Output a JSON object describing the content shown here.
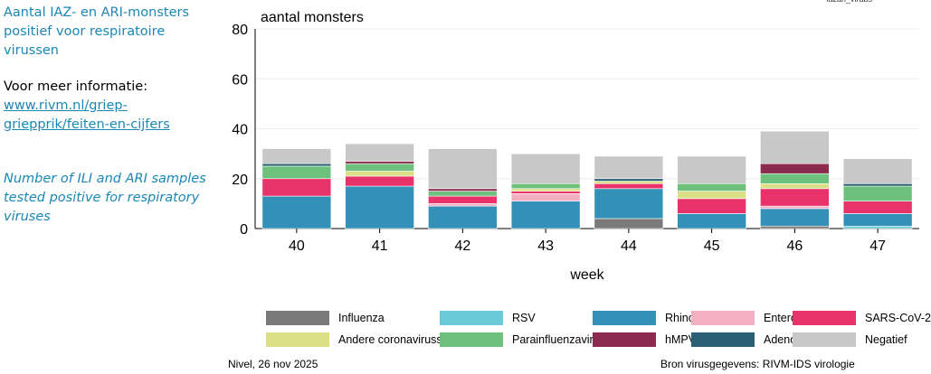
{
  "sidebar": {
    "title": "Aantal IAZ- en ARI-monsters positief voor respiratoire virussen",
    "more_info": "Voor meer informatie:",
    "link": "www.rivm.nl/griep-griepprik/feiten-en-cijfers",
    "english": "Number of ILI and ARI samples tested positive for respiratory viruses"
  },
  "corner_text": "lazari_virabs",
  "footer": {
    "left": "Nivel, 26 nov 2025",
    "right": "Bron virusgegevens: RIVM-IDS virologie"
  },
  "chart_data": {
    "type": "bar",
    "stacked": true,
    "ylabel": "aantal monsters",
    "xlabel": "week",
    "ylim": [
      0,
      80
    ],
    "yticks": [
      0,
      20,
      40,
      60,
      80
    ],
    "grid": true,
    "legend_position": "bottom",
    "categories": [
      "40",
      "41",
      "42",
      "43",
      "44",
      "45",
      "46",
      "47"
    ],
    "series": [
      {
        "name": "Influenza",
        "color": "#7a7a7a",
        "values": [
          0,
          0,
          0,
          0,
          4,
          0,
          1,
          0
        ]
      },
      {
        "name": "RSV",
        "color": "#6ccad6",
        "values": [
          0,
          0,
          0,
          0,
          0,
          0,
          0,
          1
        ]
      },
      {
        "name": "Rhino",
        "color": "#3390b7",
        "values": [
          13,
          17,
          9,
          11,
          12,
          6,
          7,
          5
        ]
      },
      {
        "name": "Entero",
        "color": "#f4b0c3",
        "values": [
          0,
          0,
          1,
          3,
          0,
          0,
          1,
          0
        ]
      },
      {
        "name": "SARS-CoV-2",
        "color": "#e8336a",
        "values": [
          7,
          4,
          3,
          1,
          2,
          6,
          7,
          5
        ]
      },
      {
        "name": "Andere coronavirussen",
        "color": "#dbe086",
        "values": [
          0,
          2,
          0,
          1,
          1,
          3,
          2,
          0
        ]
      },
      {
        "name": "Parainfluenzavirus",
        "color": "#6ec17c",
        "values": [
          5,
          3,
          2,
          2,
          0,
          3,
          4,
          6
        ]
      },
      {
        "name": "hMPV",
        "color": "#8b2b4e",
        "values": [
          0,
          1,
          1,
          0,
          0,
          0,
          4,
          0
        ]
      },
      {
        "name": "Adeno",
        "color": "#2b5f73",
        "values": [
          1,
          0,
          0,
          0,
          1,
          0,
          0,
          1
        ]
      },
      {
        "name": "Negatief",
        "color": "#c8c8c8",
        "values": [
          6,
          7,
          16,
          12,
          9,
          11,
          13,
          10
        ]
      }
    ]
  }
}
